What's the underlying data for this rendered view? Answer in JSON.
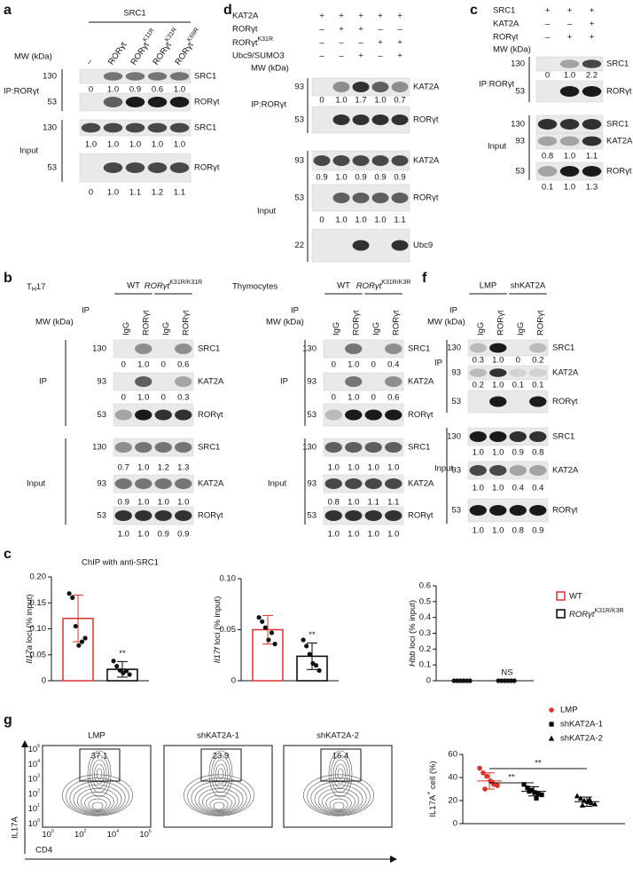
{
  "blot_panels": {
    "a": {
      "letter": "a",
      "header": "SRC1",
      "mw_label": "MW (kDa)",
      "lanes": [
        "–",
        "RORγt",
        {
          "text": "RORγt",
          "sup": "K11R"
        },
        {
          "text": "RORγt",
          "sup": "K31R"
        },
        {
          "text": "RORγt",
          "sup": "K69R"
        }
      ],
      "groups": [
        "IP:RORγt",
        "Input"
      ],
      "blots": [
        {
          "mw": 130,
          "label": "SRC1",
          "quant": [
            "0",
            "1.0",
            "0.9",
            "0.6",
            "1.0"
          ]
        },
        {
          "mw": 53,
          "label": "RORγt"
        },
        {
          "mw": 130,
          "label": "SRC1",
          "quant": [
            "1.0",
            "1.0",
            "1.0",
            "1.0",
            "1.0"
          ]
        },
        {
          "mw": 53,
          "label": "RORγt",
          "quant": [
            "0",
            "1.0",
            "1.1",
            "1.2",
            "1.1"
          ]
        }
      ]
    },
    "d": {
      "letter": "d",
      "mw_label": "MW (kDa)",
      "conditions": [
        {
          "label": "KAT2A",
          "signs": [
            "+",
            "+",
            "+",
            "+",
            "+"
          ]
        },
        {
          "label": "RORγt",
          "signs": [
            "–",
            "+",
            "+",
            "–",
            "–"
          ]
        },
        {
          "label": {
            "text": "RORγt",
            "sup": "K31R"
          },
          "signs": [
            "–",
            "–",
            "–",
            "+",
            "+"
          ]
        },
        {
          "label": "Ubc9/SUMO3",
          "signs": [
            "–",
            "–",
            "+",
            "–",
            "+"
          ]
        }
      ],
      "groups": [
        "IP:RORγt",
        "Input"
      ],
      "blots": [
        {
          "mw": 93,
          "label": "KAT2A",
          "quant": [
            "0",
            "1.0",
            "1.7",
            "1.0",
            "0.7"
          ]
        },
        {
          "mw": 53,
          "label": "RORγt"
        },
        {
          "mw": 93,
          "label": "KAT2A",
          "quant": [
            "0.9",
            "1.0",
            "0.9",
            "0.9",
            "0.9"
          ]
        },
        {
          "mw": 53,
          "label": "RORγt",
          "quant": [
            "0",
            "1.0",
            "1.0",
            "1.0",
            "1.1"
          ]
        },
        {
          "mw": 22,
          "label": "Ubc9"
        }
      ]
    },
    "c": {
      "letter": "c",
      "mw_label": "MW (kDa)",
      "conditions": [
        {
          "label": "SRC1",
          "signs": [
            "+",
            "+",
            "+"
          ]
        },
        {
          "label": "KAT2A",
          "signs": [
            "–",
            "–",
            "+"
          ]
        },
        {
          "label": "RORγt",
          "signs": [
            "–",
            "+",
            "+"
          ]
        }
      ],
      "groups": [
        "IP:RORγt",
        "Input"
      ],
      "blots": [
        {
          "mw": 130,
          "label": "SRC1",
          "quant": [
            "0",
            "1.0",
            "2.2"
          ]
        },
        {
          "mw": 53,
          "label": "RORγt"
        },
        {
          "mw": 130,
          "label": "SRC1"
        },
        {
          "mw": 93,
          "label": "KAT2A",
          "quant": [
            "0.8",
            "1.0",
            "1.1"
          ]
        },
        {
          "mw": 53,
          "label": "RORγt",
          "quant": [
            "0.1",
            "1.0",
            "1.3"
          ]
        }
      ]
    },
    "b_th17": {
      "letter": "b",
      "title": {
        "text": "T",
        "sub": "H",
        "after": "17"
      },
      "top_groups": [
        "WT",
        {
          "gene": "RORγt",
          "sup": "K31R/K31R"
        }
      ],
      "ip_label": "IP",
      "mw_label": "MW (kDa)",
      "lanes": [
        "IgG",
        "RORγt",
        "IgG",
        "RORγt"
      ],
      "groups": [
        "IP",
        "Input"
      ],
      "blots": [
        {
          "mw": 130,
          "label": "SRC1",
          "quant": [
            "0",
            "1.0",
            "0",
            "0.6"
          ]
        },
        {
          "mw": 93,
          "label": "KAT2A",
          "quant": [
            "0",
            "1.0",
            "0",
            "0.3"
          ]
        },
        {
          "mw": 53,
          "label": "RORγt"
        },
        {
          "mw": 130,
          "label": "SRC1",
          "quant": [
            "0.7",
            "1.0",
            "1.2",
            "1.3"
          ]
        },
        {
          "mw": 93,
          "label": "KAT2A",
          "quant": [
            "0.9",
            "1.0",
            "1.0",
            "1.0"
          ]
        },
        {
          "mw": 53,
          "label": "RORγt",
          "quant": [
            "1.0",
            "1.0",
            "0.9",
            "0.9"
          ]
        }
      ]
    },
    "b_thymocytes": {
      "title": "Thymocytes",
      "top_groups": [
        "WT",
        {
          "gene": "RORγt",
          "sup": "K31R/K3R"
        }
      ],
      "ip_label": "IP",
      "mw_label": "MW (kDa)",
      "lanes": [
        "IgG",
        "RORγt",
        "IgG",
        "RORγt"
      ],
      "groups": [
        "IP",
        "Input"
      ],
      "blots": [
        {
          "mw": 130,
          "label": "SRC1",
          "quant": [
            "0",
            "1.0",
            "0",
            "0.4"
          ]
        },
        {
          "mw": 93,
          "label": "KAT2A",
          "quant": [
            "0",
            "1.0",
            "0",
            "0.6"
          ]
        },
        {
          "mw": 53,
          "label": "RORγt"
        },
        {
          "mw": 130,
          "label": "SRC1",
          "quant": [
            "1.0",
            "1.0",
            "1.0",
            "1.0"
          ]
        },
        {
          "mw": 93,
          "label": "KAT2A",
          "quant": [
            "0.8",
            "1.0",
            "1.1",
            "1.1"
          ]
        },
        {
          "mw": 53,
          "label": "RORγt",
          "quant": [
            "1.0",
            "1.0",
            "1.0",
            "1.0"
          ]
        }
      ]
    },
    "f": {
      "letter": "f",
      "top_groups": [
        "LMP",
        "shKAT2A"
      ],
      "ip_label": "IP",
      "mw_label": "MW (kDa)",
      "lanes": [
        "IgG",
        "RORγt",
        "IgG",
        "RORγt"
      ],
      "groups": [
        "IP",
        "Input"
      ],
      "blots": [
        {
          "mw": 130,
          "label": "SRC1",
          "quant": [
            "0.3",
            "1.0",
            "0",
            "0.2"
          ]
        },
        {
          "mw": 93,
          "label": "KAT2A",
          "quant": [
            "0.2",
            "1.0",
            "0.1",
            "0.1"
          ]
        },
        {
          "mw": 53,
          "label": "RORγt"
        },
        {
          "mw": 130,
          "label": "SRC1",
          "quant": [
            "1.0",
            "1.0",
            "0.9",
            "0.8"
          ]
        },
        {
          "mw": 93,
          "label": "KAT2A",
          "quant": [
            "1.0",
            "1.0",
            "0.4",
            "0.4"
          ]
        },
        {
          "mw": 53,
          "label": "RORγt",
          "quant": [
            "1.0",
            "1.0",
            "0.8",
            "0.9"
          ]
        }
      ]
    }
  },
  "chip_panel": {
    "letter": "c",
    "title": "ChIP with anti-SRC1",
    "legend": [
      {
        "name": "WT",
        "color": "#e0312a"
      },
      {
        "name": {
          "gene": "RORγt",
          "sup": "K31R/K3R"
        },
        "color": "#000000"
      }
    ]
  },
  "flow": {
    "letter": "g",
    "ylabel": "IL17A",
    "xlabel": "CD4",
    "tick_base": "10",
    "yexps": [
      "0",
      "1",
      "2",
      "3",
      "4",
      "5"
    ],
    "xexps": [
      "0",
      "2",
      "4",
      "6"
    ],
    "plots": [
      {
        "title": "LMP",
        "gate": "37.1"
      },
      {
        "title": "shKAT2A-1",
        "gate": "23.9"
      },
      {
        "title": "shKAT2A-2",
        "gate": "16.4"
      }
    ]
  },
  "chart_data": [
    {
      "type": "bar",
      "ylabel": {
        "gene": "Il17a",
        "text": " loci (% input)"
      },
      "ylim": [
        0,
        0.2
      ],
      "yticks": [
        0,
        0.05,
        {
          "value": 0.1,
          "label": "0.10"
        },
        0.15,
        {
          "value": 0.2,
          "label": "0.20"
        }
      ],
      "series": [
        {
          "value": 0.12,
          "error": 0.045,
          "points": [
            0.168,
            0.16,
            0.105,
            0.068,
            0.075,
            0.082
          ]
        },
        {
          "value": 0.022,
          "error": 0.015,
          "points": [
            0.038,
            0.028,
            0.02,
            0.015,
            0.019,
            0.012
          ],
          "annotation": "**"
        }
      ]
    },
    {
      "type": "bar",
      "ylabel": {
        "gene": "Il17f",
        "text": " loci (% input)"
      },
      "ylim": [
        0,
        0.1
      ],
      "yticks": [
        0,
        0.05,
        {
          "value": 0.1,
          "label": "0.10"
        }
      ],
      "series": [
        {
          "value": 0.05,
          "error": 0.014,
          "points": [
            0.062,
            0.058,
            0.052,
            0.04,
            0.047,
            0.036
          ]
        },
        {
          "value": 0.024,
          "error": 0.013,
          "points": [
            0.04,
            0.034,
            0.026,
            0.017,
            0.015,
            0.01
          ],
          "annotation": "**"
        }
      ]
    },
    {
      "type": "bar",
      "ylabel": {
        "gene": "Hbb",
        "text": " loci (% input)"
      },
      "ylim": [
        0,
        0.6
      ],
      "yticks": [
        0,
        0.1,
        0.2,
        0.3,
        0.4,
        0.5,
        0.6
      ],
      "series": [
        {
          "value": 0,
          "error": 0,
          "points": [
            0,
            0,
            0,
            0,
            0,
            0
          ]
        },
        {
          "value": 0,
          "error": 0,
          "points": [
            0,
            0,
            0,
            0,
            0,
            0
          ],
          "annotation": "NS"
        }
      ]
    },
    {
      "type": "scatter",
      "ylabel": {
        "text": "IL17A",
        "sup": "+",
        "after": " cell (%)"
      },
      "ylim": [
        0,
        60
      ],
      "yticks": [
        0,
        20,
        40,
        60
      ],
      "series": [
        {
          "name": "LMP",
          "color": "#e0312a",
          "marker": "circle",
          "mean": 37,
          "error": 7,
          "values": [
            48,
            44,
            41,
            37,
            34,
            33,
            30,
            36
          ]
        },
        {
          "name": "shKAT2A-1",
          "color": "#000000",
          "marker": "square",
          "mean": 28,
          "error": 4,
          "values": [
            34,
            31,
            29,
            27,
            26,
            25,
            28,
            22
          ]
        },
        {
          "name": "shKAT2A-2",
          "color": "#000000",
          "marker": "triangle",
          "mean": 19,
          "error": 4,
          "values": [
            24,
            22,
            20,
            19,
            18,
            17,
            16,
            21
          ]
        }
      ],
      "comparisons": [
        "**",
        "**"
      ]
    }
  ]
}
